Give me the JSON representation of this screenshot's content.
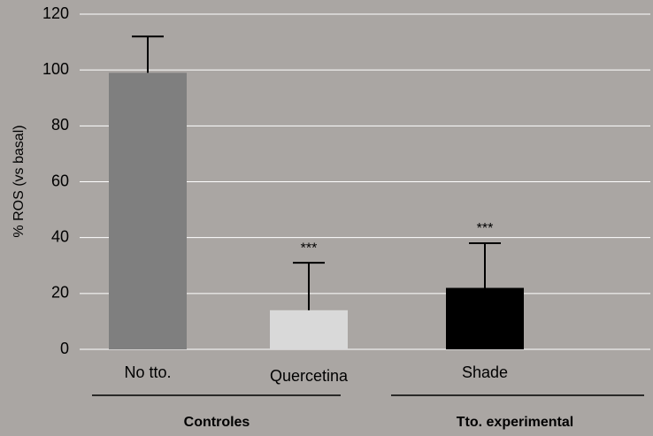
{
  "chart_data": {
    "type": "bar",
    "ylabel": "% ROS (vs basal)",
    "categories": [
      "No tto.",
      "Quercetina",
      "Shade"
    ],
    "values": [
      99,
      14,
      22
    ],
    "errors": [
      13,
      17,
      16
    ],
    "colors": [
      "#7f7f7f",
      "#d9d9d9",
      "#000000"
    ],
    "annotations": [
      null,
      "***",
      "***"
    ],
    "groups": [
      "Controles",
      "Tto. experimental"
    ],
    "ylim": [
      0,
      120
    ],
    "yticks": [
      0,
      20,
      40,
      60,
      80,
      100,
      120
    ],
    "grid": true
  }
}
